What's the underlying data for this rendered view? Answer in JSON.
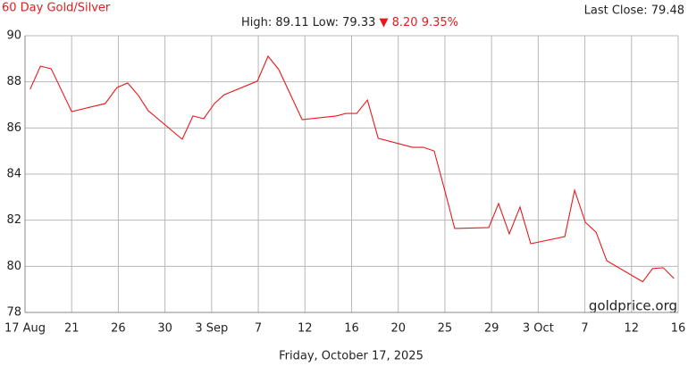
{
  "chart_data": {
    "type": "line",
    "title": "60 Day Gold/Silver",
    "last_close": "Last Close: 79.48",
    "high_low": "High: 89.11 Low: 79.33",
    "change": "▼ 8.20 9.35%",
    "watermark": "goldprice.org",
    "date": "Friday, October 17, 2025",
    "grid": true,
    "xlim": [
      0,
      14
    ],
    "xticks": [
      {
        "value": 0,
        "label": "17 Aug"
      },
      {
        "value": 1,
        "label": "21"
      },
      {
        "value": 2,
        "label": "26"
      },
      {
        "value": 3,
        "label": "30"
      },
      {
        "value": 4,
        "label": "3 Sep"
      },
      {
        "value": 5,
        "label": "7"
      },
      {
        "value": 6,
        "label": "12"
      },
      {
        "value": 7,
        "label": "16"
      },
      {
        "value": 8,
        "label": "20"
      },
      {
        "value": 9,
        "label": "25"
      },
      {
        "value": 10,
        "label": "29"
      },
      {
        "value": 11,
        "label": "3 Oct"
      },
      {
        "value": 12,
        "label": "7"
      },
      {
        "value": 13,
        "label": "12"
      },
      {
        "value": 14,
        "label": "16"
      }
    ],
    "ylim": [
      78,
      90
    ],
    "yticks": [
      78,
      80,
      82,
      84,
      86,
      88,
      90
    ],
    "series": [
      {
        "color": "#e8191c",
        "x": [
          0.11,
          0.33,
          0.56,
          1.0,
          1.72,
          1.97,
          2.2,
          2.43,
          2.64,
          3.37,
          3.6,
          3.83,
          4.06,
          4.27,
          4.98,
          5.21,
          5.44,
          5.94,
          6.67,
          6.88,
          7.11,
          7.34,
          7.57,
          8.31,
          8.54,
          8.77,
          8.98,
          9.21,
          9.94,
          10.15,
          10.38,
          10.61,
          10.84,
          11.57,
          11.78,
          12.01,
          12.24,
          12.47,
          13.24,
          13.45,
          13.68,
          13.91
        ],
        "values": [
          87.68,
          88.68,
          88.57,
          86.71,
          87.06,
          87.75,
          87.95,
          87.41,
          86.75,
          85.51,
          86.52,
          86.4,
          87.06,
          87.44,
          88.03,
          89.11,
          88.53,
          86.36,
          86.52,
          86.63,
          86.63,
          87.21,
          85.55,
          85.16,
          85.16,
          85.0,
          83.42,
          81.64,
          81.68,
          82.72,
          81.41,
          82.57,
          80.98,
          81.29,
          83.3,
          81.91,
          81.48,
          80.24,
          79.33,
          79.9,
          79.94,
          79.47
        ]
      }
    ]
  }
}
